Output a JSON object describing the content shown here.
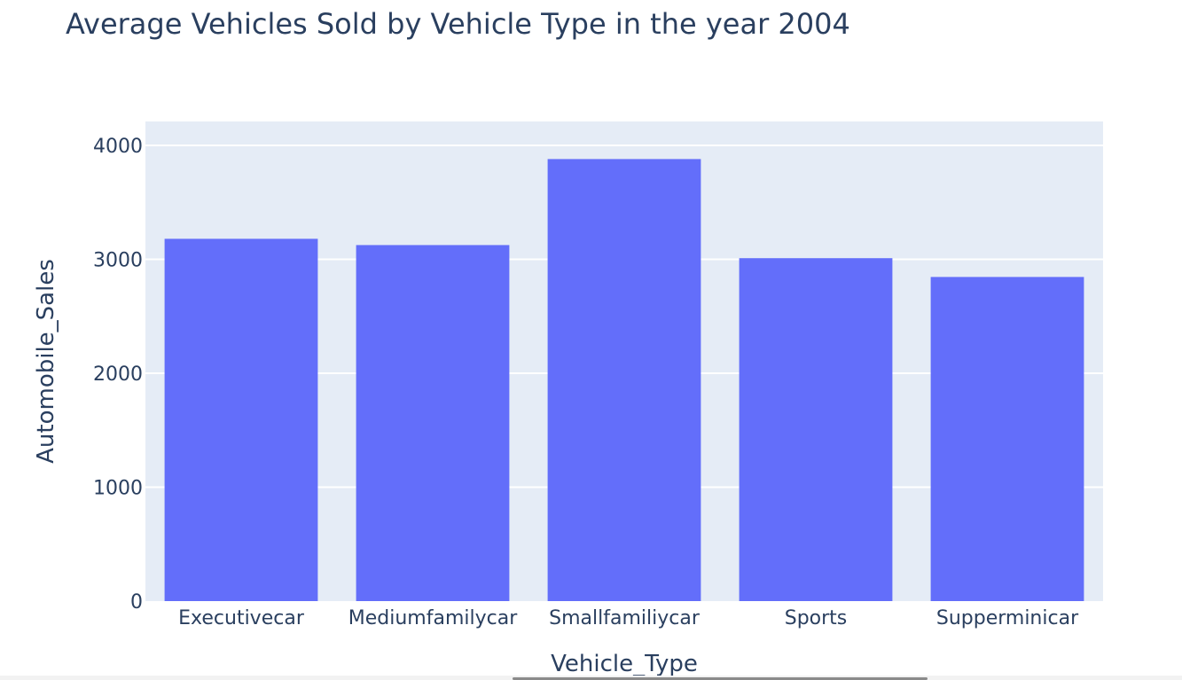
{
  "colors": {
    "plot_bg": "#e5ecf6",
    "bar": "#636efa",
    "grid": "#ffffff",
    "text": "#2a3f5f"
  },
  "chart_data": {
    "type": "bar",
    "title": "Average Vehicles Sold by Vehicle Type in the year 2004",
    "xlabel": "Vehicle_Type",
    "ylabel": "Automobile_Sales",
    "categories": [
      "Executivecar",
      "Mediumfamilycar",
      "Smallfamiliycar",
      "Sports",
      "Supperminicar"
    ],
    "values": [
      3180,
      3125,
      3880,
      3010,
      2845
    ],
    "ylim": [
      0,
      4210
    ],
    "yticks": [
      0,
      1000,
      2000,
      3000,
      4000
    ],
    "ytick_labels": [
      "0",
      "1000",
      "2000",
      "3000",
      "4000"
    ],
    "grid": true,
    "legend": "none"
  }
}
